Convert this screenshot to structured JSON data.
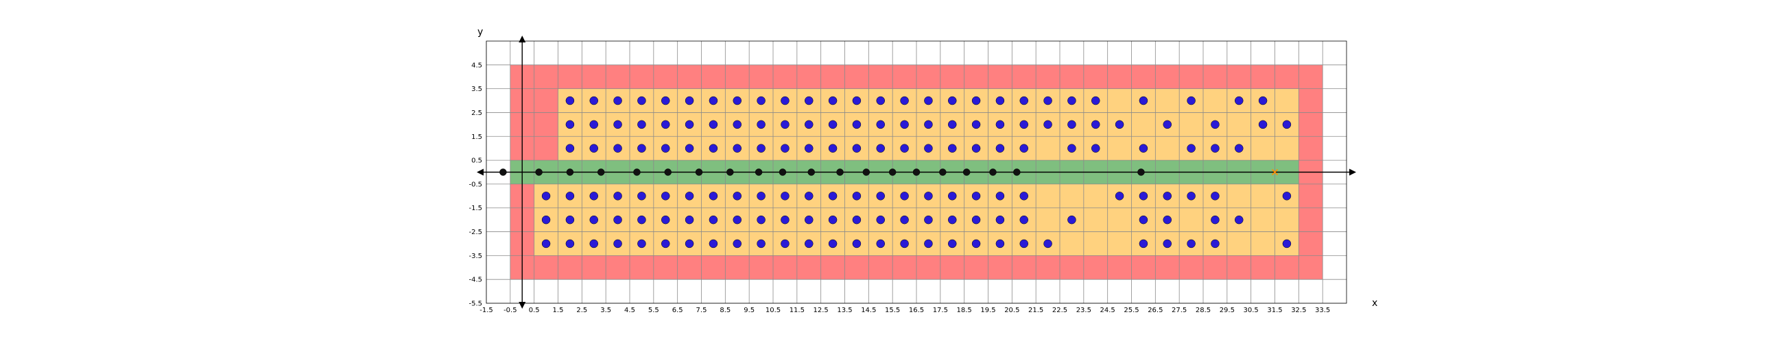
{
  "chart_data": {
    "type": "scatter",
    "title": "",
    "xlabel": "x",
    "ylabel": "y",
    "xlim": [
      -1.5,
      34.5
    ],
    "ylim": [
      -5.5,
      5.5
    ],
    "x_ticks": [
      "-1.5",
      "-0.5",
      "0.5",
      "1.5",
      "2.5",
      "3.5",
      "4.5",
      "5.5",
      "6.5",
      "7.5",
      "8.5",
      "9.5",
      "10.5",
      "11.5",
      "12.5",
      "13.5",
      "14.5",
      "15.5",
      "16.5",
      "17.5",
      "18.5",
      "19.5",
      "20.5",
      "21.5",
      "22.5",
      "23.5",
      "24.5",
      "25.5",
      "26.5",
      "27.5",
      "28.5",
      "29.5",
      "30.5",
      "31.5",
      "32.5",
      "33.5"
    ],
    "y_ticks": [
      "4.5",
      "3.5",
      "2.5",
      "1.5",
      "0.5",
      "-0.5",
      "-1.5",
      "-2.5",
      "-3.5",
      "-4.5",
      "-5.5"
    ],
    "grid": true,
    "regions": [
      {
        "name": "outer",
        "color": "#ff8080",
        "x": [
          -0.5,
          33.5
        ],
        "y": [
          -4.5,
          4.5
        ]
      },
      {
        "name": "upper-inner",
        "color": "#ffd27f",
        "x": [
          1.5,
          32.5
        ],
        "y": [
          0.5,
          3.5
        ]
      },
      {
        "name": "lower-inner",
        "color": "#ffd27f",
        "x": [
          0.5,
          32.5
        ],
        "y": [
          -3.5,
          -0.5
        ]
      },
      {
        "name": "band",
        "color": "#7fbf7f",
        "x": [
          -0.5,
          32.5
        ],
        "y": [
          -0.5,
          0.5
        ]
      }
    ],
    "series": [
      {
        "color": "#2a1ad6",
        "marker": "circle",
        "points": [
          [
            2,
            3
          ],
          [
            3,
            3
          ],
          [
            4,
            3
          ],
          [
            5,
            3
          ],
          [
            6,
            3
          ],
          [
            7,
            3
          ],
          [
            8,
            3
          ],
          [
            9,
            3
          ],
          [
            10,
            3
          ],
          [
            11,
            3
          ],
          [
            12,
            3
          ],
          [
            13,
            3
          ],
          [
            14,
            3
          ],
          [
            15,
            3
          ],
          [
            16,
            3
          ],
          [
            17,
            3
          ],
          [
            18,
            3
          ],
          [
            19,
            3
          ],
          [
            20,
            3
          ],
          [
            21,
            3
          ],
          [
            22,
            3
          ],
          [
            23,
            3
          ],
          [
            24,
            3
          ],
          [
            26,
            3
          ],
          [
            28,
            3
          ],
          [
            30,
            3
          ],
          [
            31,
            3
          ],
          [
            2,
            2
          ],
          [
            3,
            2
          ],
          [
            4,
            2
          ],
          [
            5,
            2
          ],
          [
            6,
            2
          ],
          [
            7,
            2
          ],
          [
            8,
            2
          ],
          [
            9,
            2
          ],
          [
            10,
            2
          ],
          [
            11,
            2
          ],
          [
            12,
            2
          ],
          [
            13,
            2
          ],
          [
            14,
            2
          ],
          [
            15,
            2
          ],
          [
            16,
            2
          ],
          [
            17,
            2
          ],
          [
            18,
            2
          ],
          [
            19,
            2
          ],
          [
            20,
            2
          ],
          [
            21,
            2
          ],
          [
            22,
            2
          ],
          [
            23,
            2
          ],
          [
            24,
            2
          ],
          [
            25,
            2
          ],
          [
            27,
            2
          ],
          [
            29,
            2
          ],
          [
            31,
            2
          ],
          [
            32,
            2
          ],
          [
            2,
            1
          ],
          [
            3,
            1
          ],
          [
            4,
            1
          ],
          [
            5,
            1
          ],
          [
            6,
            1
          ],
          [
            7,
            1
          ],
          [
            8,
            1
          ],
          [
            9,
            1
          ],
          [
            10,
            1
          ],
          [
            11,
            1
          ],
          [
            12,
            1
          ],
          [
            13,
            1
          ],
          [
            14,
            1
          ],
          [
            15,
            1
          ],
          [
            16,
            1
          ],
          [
            17,
            1
          ],
          [
            18,
            1
          ],
          [
            19,
            1
          ],
          [
            20,
            1
          ],
          [
            21,
            1
          ],
          [
            23,
            1
          ],
          [
            24,
            1
          ],
          [
            26,
            1
          ],
          [
            28,
            1
          ],
          [
            29,
            1
          ],
          [
            30,
            1
          ],
          [
            1,
            -1
          ],
          [
            2,
            -1
          ],
          [
            3,
            -1
          ],
          [
            4,
            -1
          ],
          [
            5,
            -1
          ],
          [
            6,
            -1
          ],
          [
            7,
            -1
          ],
          [
            8,
            -1
          ],
          [
            9,
            -1
          ],
          [
            10,
            -1
          ],
          [
            11,
            -1
          ],
          [
            12,
            -1
          ],
          [
            13,
            -1
          ],
          [
            14,
            -1
          ],
          [
            15,
            -1
          ],
          [
            16,
            -1
          ],
          [
            17,
            -1
          ],
          [
            18,
            -1
          ],
          [
            19,
            -1
          ],
          [
            20,
            -1
          ],
          [
            21,
            -1
          ],
          [
            25,
            -1
          ],
          [
            26,
            -1
          ],
          [
            27,
            -1
          ],
          [
            28,
            -1
          ],
          [
            29,
            -1
          ],
          [
            32,
            -1
          ],
          [
            1,
            -2
          ],
          [
            2,
            -2
          ],
          [
            3,
            -2
          ],
          [
            4,
            -2
          ],
          [
            5,
            -2
          ],
          [
            6,
            -2
          ],
          [
            7,
            -2
          ],
          [
            8,
            -2
          ],
          [
            9,
            -2
          ],
          [
            10,
            -2
          ],
          [
            11,
            -2
          ],
          [
            12,
            -2
          ],
          [
            13,
            -2
          ],
          [
            14,
            -2
          ],
          [
            15,
            -2
          ],
          [
            16,
            -2
          ],
          [
            17,
            -2
          ],
          [
            18,
            -2
          ],
          [
            19,
            -2
          ],
          [
            20,
            -2
          ],
          [
            21,
            -2
          ],
          [
            23,
            -2
          ],
          [
            26,
            -2
          ],
          [
            27,
            -2
          ],
          [
            29,
            -2
          ],
          [
            30,
            -2
          ],
          [
            1,
            -3
          ],
          [
            2,
            -3
          ],
          [
            3,
            -3
          ],
          [
            4,
            -3
          ],
          [
            5,
            -3
          ],
          [
            6,
            -3
          ],
          [
            7,
            -3
          ],
          [
            8,
            -3
          ],
          [
            9,
            -3
          ],
          [
            10,
            -3
          ],
          [
            11,
            -3
          ],
          [
            12,
            -3
          ],
          [
            13,
            -3
          ],
          [
            14,
            -3
          ],
          [
            15,
            -3
          ],
          [
            16,
            -3
          ],
          [
            17,
            -3
          ],
          [
            18,
            -3
          ],
          [
            19,
            -3
          ],
          [
            20,
            -3
          ],
          [
            21,
            -3
          ],
          [
            22,
            -3
          ],
          [
            26,
            -3
          ],
          [
            27,
            -3
          ],
          [
            28,
            -3
          ],
          [
            29,
            -3
          ],
          [
            32,
            -3
          ]
        ]
      },
      {
        "color": "#111111",
        "marker": "circle",
        "points": [
          [
            -0.8,
            0
          ],
          [
            0.7,
            0
          ],
          [
            2.0,
            0
          ],
          [
            3.3,
            0
          ],
          [
            4.8,
            0
          ],
          [
            6.1,
            0
          ],
          [
            7.4,
            0
          ],
          [
            8.7,
            0
          ],
          [
            9.9,
            0
          ],
          [
            10.9,
            0
          ],
          [
            12.1,
            0
          ],
          [
            13.3,
            0
          ],
          [
            14.4,
            0
          ],
          [
            15.5,
            0
          ],
          [
            16.5,
            0
          ],
          [
            17.6,
            0
          ],
          [
            18.6,
            0
          ],
          [
            19.7,
            0
          ],
          [
            20.7,
            0
          ],
          [
            25.9,
            0
          ]
        ]
      },
      {
        "color": "#ff8c00",
        "marker": "x",
        "points": [
          [
            31.5,
            0
          ]
        ]
      }
    ]
  }
}
